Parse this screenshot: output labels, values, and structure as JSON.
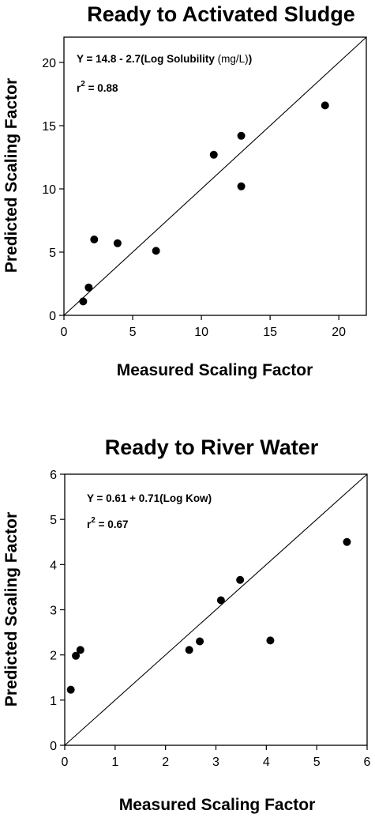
{
  "chart_data": [
    {
      "type": "scatter",
      "title": "Ready to Activated Sludge",
      "xlabel": "Measured Scaling Factor",
      "ylabel": "Predicted Scaling Factor",
      "xlim": [
        0,
        22
      ],
      "ylim": [
        0,
        22
      ],
      "xticks": [
        0,
        5,
        10,
        15,
        20
      ],
      "yticks": [
        0,
        5,
        10,
        15,
        20
      ],
      "equation_main": "Y = 14.8 - 2.7(Log Solubility ",
      "equation_unit": "(mg/L)",
      "equation_close": ")",
      "r2_prefix": "r",
      "r2_exp": "2",
      "r2_value": " = 0.88",
      "reference_line": "y = x",
      "points": [
        {
          "x": 1.4,
          "y": 1.1
        },
        {
          "x": 1.8,
          "y": 2.2
        },
        {
          "x": 2.2,
          "y": 6.0
        },
        {
          "x": 3.9,
          "y": 5.7
        },
        {
          "x": 6.7,
          "y": 5.1
        },
        {
          "x": 10.9,
          "y": 12.7
        },
        {
          "x": 12.9,
          "y": 14.2
        },
        {
          "x": 12.9,
          "y": 10.2
        },
        {
          "x": 19.0,
          "y": 16.6
        }
      ]
    },
    {
      "type": "scatter",
      "title": "Ready to River Water",
      "xlabel": "Measured Scaling Factor",
      "ylabel": "Predicted Scaling Factor",
      "xlim": [
        0,
        6
      ],
      "ylim": [
        0,
        6
      ],
      "xticks": [
        0,
        1,
        2,
        3,
        4,
        5,
        6
      ],
      "yticks": [
        0,
        1,
        2,
        3,
        4,
        5,
        6
      ],
      "equation_main": "Y = 0.61 + 0.71(Log Kow)",
      "equation_unit": "",
      "equation_close": "",
      "r2_prefix": "r",
      "r2_exp": "2",
      "r2_value": " = 0.67",
      "reference_line": "y = x",
      "points": [
        {
          "x": 0.12,
          "y": 1.23
        },
        {
          "x": 0.22,
          "y": 1.98
        },
        {
          "x": 0.31,
          "y": 2.11
        },
        {
          "x": 2.47,
          "y": 2.11
        },
        {
          "x": 2.68,
          "y": 2.3
        },
        {
          "x": 3.1,
          "y": 3.21
        },
        {
          "x": 3.48,
          "y": 3.66
        },
        {
          "x": 4.08,
          "y": 2.32
        },
        {
          "x": 5.6,
          "y": 4.5
        }
      ]
    }
  ]
}
